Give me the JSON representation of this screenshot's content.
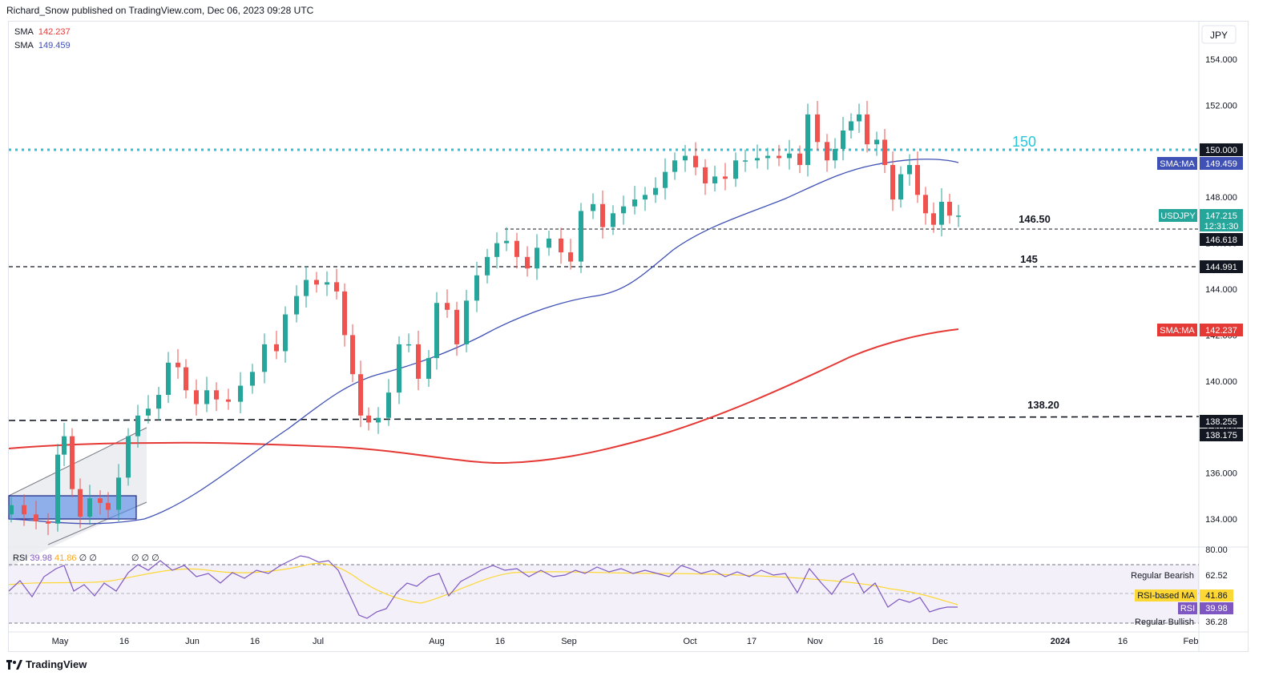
{
  "header": {
    "publisher_line": "Richard_Snow published on TradingView.com, Dec 06, 2023 09:28 UTC"
  },
  "legend": {
    "sma1": {
      "label": "SMA",
      "value": "142.237",
      "color": "#e53935"
    },
    "sma2": {
      "label": "SMA",
      "value": "149.459",
      "color": "#3f51b5"
    }
  },
  "price_axis": {
    "currency": "JPY",
    "ticks": [
      "154.000",
      "152.000",
      "150.000",
      "148.000",
      "146.000",
      "144.000",
      "142.000",
      "140.000",
      "138.000",
      "136.000",
      "134.000"
    ]
  },
  "time_axis": {
    "ticks": [
      "May",
      "16",
      "Jun",
      "16",
      "Jul",
      "Aug",
      "16",
      "Sep",
      "Oct",
      "17",
      "Nov",
      "16",
      "Dec",
      "2024",
      "16",
      "Feb"
    ]
  },
  "annotations": {
    "level_150": "150",
    "level_14650": "146.50",
    "level_145": "145",
    "level_13820": "138.20"
  },
  "price_labels": {
    "l150": "150.000",
    "sma_blue_tag": "SMA:MA",
    "sma_blue_val": "149.459",
    "usdjpy_tag": "USDJPY",
    "usdjpy_val": "147.215",
    "countdown": "12:31:30",
    "l14662": "146.618",
    "l14499": "144.991",
    "sma_red_tag": "SMA:MA",
    "sma_red_val": "142.237",
    "l13826": "138.255",
    "l13818": "138.175"
  },
  "rsi": {
    "label": "RSI",
    "value": "39.98",
    "ma_value": "41.86",
    "zeros": "∅ ∅",
    "zeros2": "∅ ∅ ∅",
    "axis": {
      "top": "80.00",
      "regular_bearish": "Regular Bearish",
      "v6252": "62.52",
      "rsi_ma_tag": "RSI-based MA",
      "rsi_ma_val": "41.86",
      "rsi_tag": "RSI",
      "rsi_val": "39.98",
      "regular_bullish": "Regular Bullish",
      "v3628": "36.28"
    }
  },
  "footer": {
    "brand": "TradingView"
  },
  "colors": {
    "up": "#26a69a",
    "down": "#ef5350",
    "sma200": "#e53935",
    "sma50": "#3f51b5",
    "level150": "#26c6da",
    "rsi": "#7e57c2",
    "rsima": "#fdd835"
  },
  "chart_data": {
    "type": "line",
    "title": "",
    "instrument": "USDJPY",
    "ylabel": "JPY",
    "ylim": [
      132.8,
      155.0
    ],
    "x": [
      "May",
      "16",
      "Jun",
      "16",
      "Jul",
      "Aug",
      "16",
      "Sep",
      "Oct",
      "17",
      "Nov",
      "16",
      "Dec"
    ],
    "series": [
      {
        "name": "SMA",
        "color": "#3f51b5",
        "values": [
          134.2,
          134.6,
          136.4,
          138.6,
          140.6,
          142.2,
          143.4,
          144.0,
          146.6,
          147.6,
          148.4,
          149.3,
          149.46
        ]
      },
      {
        "name": "SMA",
        "color": "#e53935",
        "values": [
          137.5,
          137.6,
          137.7,
          137.6,
          137.4,
          137.1,
          136.7,
          137.1,
          138.1,
          139.6,
          140.9,
          141.8,
          142.24
        ]
      }
    ],
    "close_approx": [
      134.6,
      137.6,
      140.6,
      141.5,
      144.4,
      141.8,
      144.2,
      146.5,
      149.8,
      149.7,
      150.4,
      148.8,
      147.215
    ],
    "horizontal_levels": [
      150.0,
      146.618,
      144.991,
      138.255,
      138.175
    ]
  }
}
